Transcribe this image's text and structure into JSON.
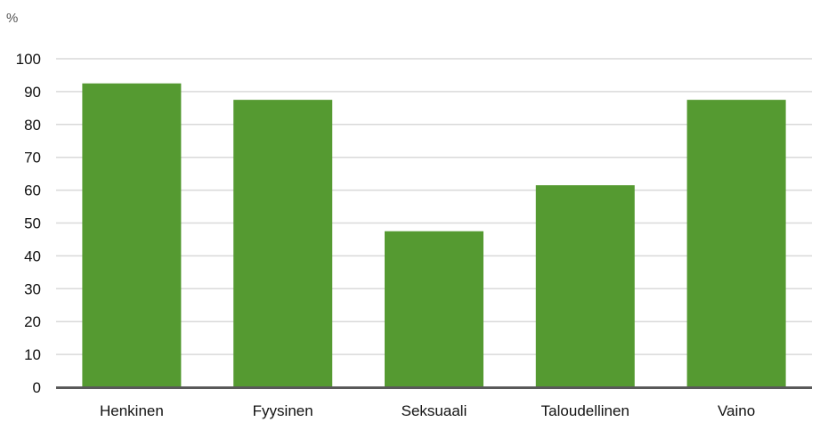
{
  "chart_data": {
    "type": "bar",
    "unit_label": "%",
    "categories": [
      "Henkinen",
      "Fyysinen",
      "Seksuaali",
      "Taloudellinen",
      "Vaino"
    ],
    "values": [
      92.5,
      87.5,
      47.5,
      61.5,
      87.5
    ],
    "ylim": [
      0,
      100
    ],
    "yticks": [
      0,
      10,
      20,
      30,
      40,
      50,
      60,
      70,
      80,
      90,
      100
    ],
    "grid": true,
    "legend": false,
    "colors": {
      "bar": "#559a31",
      "grid": "#d9d9d9",
      "axis": "#595959"
    }
  }
}
